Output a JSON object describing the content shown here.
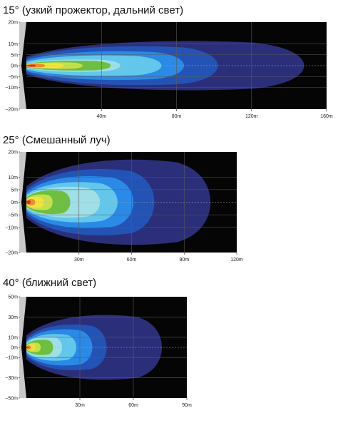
{
  "chart_data": [
    {
      "type": "area",
      "title": "15° (узкий прожектор, дальний свет)",
      "x_ticks": [
        "40m",
        "80m",
        "120m",
        "160m"
      ],
      "y_ticks": [
        "20m",
        "10m",
        "5m",
        "0m",
        "−5m",
        "−10m",
        "−20m"
      ],
      "xlim": [
        0,
        160
      ],
      "ylim": [
        -20,
        20
      ],
      "grid": true,
      "series": [
        {
          "color": "#2b2f7a",
          "reach": 148,
          "half_width": 12
        },
        {
          "color": "#2354b5",
          "reach": 102,
          "half_width": 9.5
        },
        {
          "color": "#2a8ae6",
          "reach": 84,
          "half_width": 7
        },
        {
          "color": "#63c7ec",
          "reach": 72,
          "half_width": 5
        },
        {
          "color": "#9fdfe6",
          "reach": 50,
          "half_width": 3
        },
        {
          "color": "#6cbf3f",
          "reach": 45,
          "half_width": 2.4
        },
        {
          "color": "#c6e04b",
          "reach": 30,
          "half_width": 1.6
        },
        {
          "color": "#f1e43a",
          "reach": 20,
          "half_width": 1.1
        },
        {
          "color": "#f08a2a",
          "reach": 10,
          "half_width": 0.8
        },
        {
          "color": "#e0201d",
          "reach": 5,
          "half_width": 0.5
        }
      ]
    },
    {
      "type": "area",
      "title": "25° (Смешанный луч)",
      "x_ticks": [
        "30m",
        "60m",
        "90m",
        "120m"
      ],
      "y_ticks": [
        "20m",
        "10m",
        "5m",
        "0m",
        "−5m",
        "−10m",
        "−20m"
      ],
      "xlim": [
        0,
        120
      ],
      "ylim": [
        -20,
        20
      ],
      "grid": true,
      "series": [
        {
          "color": "#2b2f7a",
          "reach": 105,
          "half_width": 18
        },
        {
          "color": "#2354b5",
          "reach": 73,
          "half_width": 14
        },
        {
          "color": "#2a8ae6",
          "reach": 61,
          "half_width": 11
        },
        {
          "color": "#63c7ec",
          "reach": 52,
          "half_width": 8.5
        },
        {
          "color": "#9fdfe6",
          "reach": 42,
          "half_width": 6.5
        },
        {
          "color": "#6cbf3f",
          "reach": 25,
          "half_width": 5
        },
        {
          "color": "#c6e04b",
          "reach": 15,
          "half_width": 3.3
        },
        {
          "color": "#f1e43a",
          "reach": 10,
          "half_width": 2.3
        },
        {
          "color": "#f08a2a",
          "reach": 5,
          "half_width": 1.3
        },
        {
          "color": "#e0201d",
          "reach": 2.5,
          "half_width": 0.7
        }
      ]
    },
    {
      "type": "area",
      "title": "40° (ближний свет)",
      "x_ticks": [
        "30m",
        "60m",
        "90m"
      ],
      "y_ticks": [
        "50m",
        "30m",
        "10m",
        "0m",
        "−10m",
        "−30m",
        "−50m"
      ],
      "xlim": [
        0,
        90
      ],
      "ylim": [
        -50,
        50
      ],
      "grid": true,
      "series": [
        {
          "color": "#2b2f7a",
          "reach": 76,
          "half_width": 34
        },
        {
          "color": "#2354b5",
          "reach": 45,
          "half_width": 24
        },
        {
          "color": "#2a8ae6",
          "reach": 37,
          "half_width": 19
        },
        {
          "color": "#63c7ec",
          "reach": 28,
          "half_width": 14
        },
        {
          "color": "#9fdfe6",
          "reach": 20,
          "half_width": 11
        },
        {
          "color": "#6cbf3f",
          "reach": 15,
          "half_width": 8
        },
        {
          "color": "#c6e04b",
          "reach": 8,
          "half_width": 5
        },
        {
          "color": "#f1e43a",
          "reach": 5,
          "half_width": 3.5
        },
        {
          "color": "#f08a2a",
          "reach": 2.5,
          "half_width": 2
        },
        {
          "color": "#e0201d",
          "reach": 1.2,
          "half_width": 1
        }
      ]
    }
  ]
}
